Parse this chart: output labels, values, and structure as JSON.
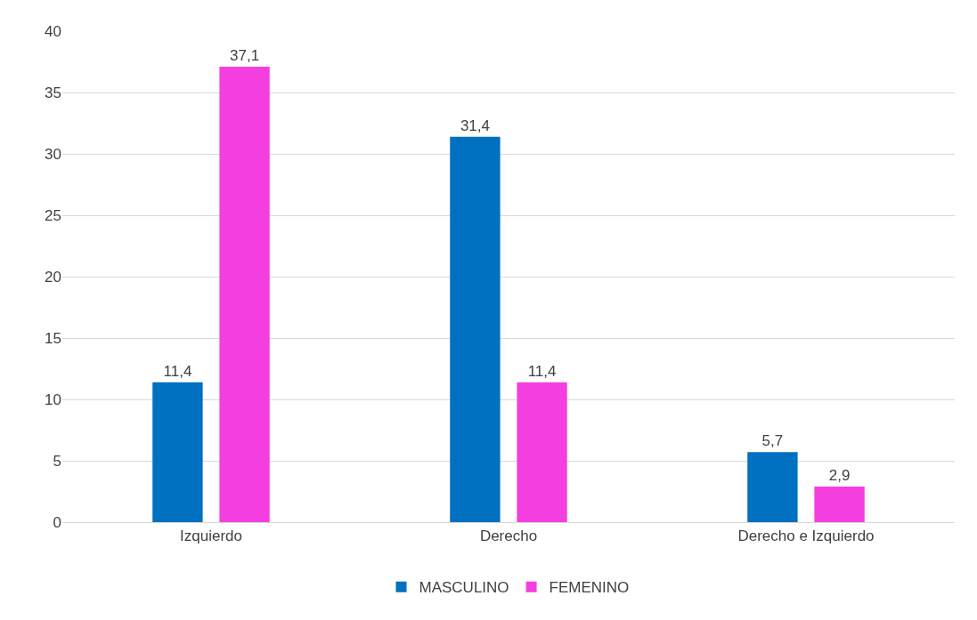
{
  "chart_data": {
    "type": "bar",
    "categories": [
      "Izquierdo",
      "Derecho",
      "Derecho e Izquierdo"
    ],
    "series": [
      {
        "name": "MASCULINO",
        "color": "#0070c0",
        "values": [
          11.4,
          31.4,
          5.7
        ],
        "value_labels": [
          "11,4",
          "31,4",
          "5,7"
        ]
      },
      {
        "name": "FEMENINO",
        "color": "#f53ee0",
        "values": [
          37.1,
          11.4,
          2.9
        ],
        "value_labels": [
          "37,1",
          "11,4",
          "2,9"
        ]
      }
    ],
    "ylim": [
      0,
      40
    ],
    "yticks": [
      0,
      5,
      10,
      15,
      20,
      25,
      30,
      35,
      40
    ],
    "grid": "y",
    "legend": "bottom"
  }
}
